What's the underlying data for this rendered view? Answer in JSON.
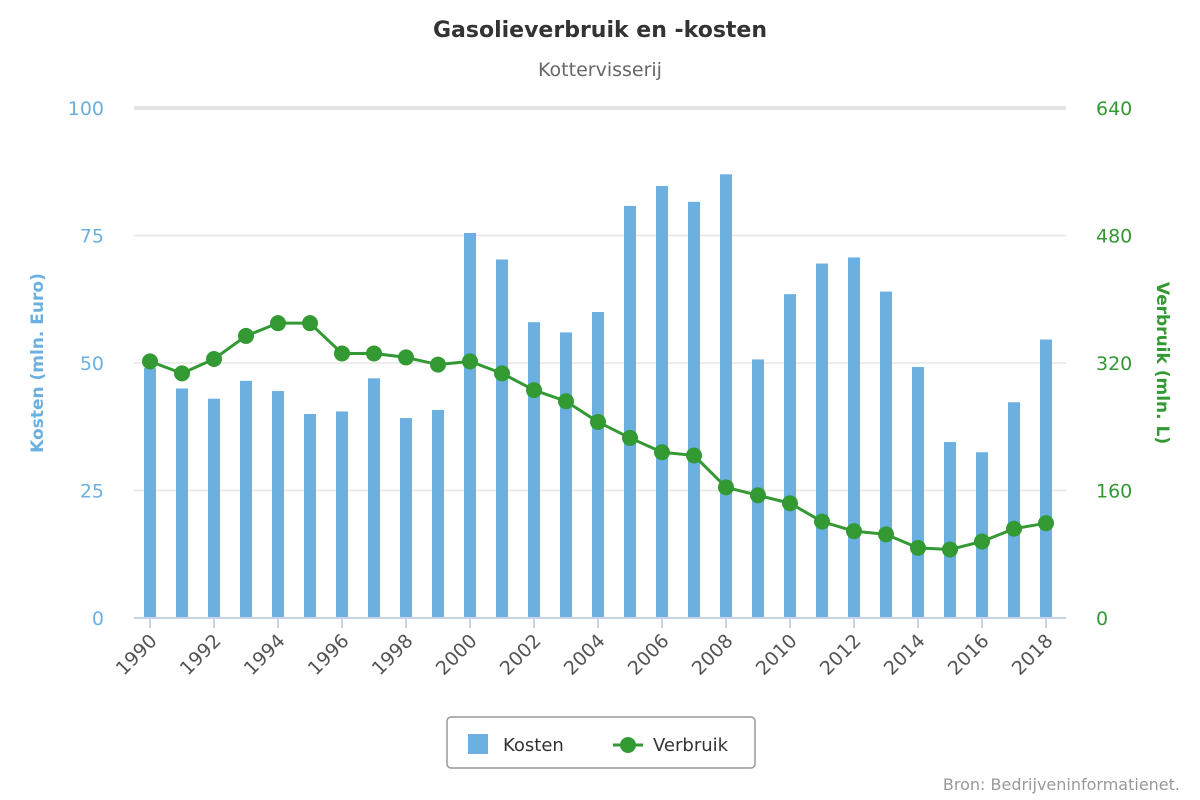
{
  "chart_data": {
    "type": "bar+line",
    "title": "Gasolieverbruik en -kosten",
    "subtitle": "Kottervisserij",
    "x": [
      1990,
      1991,
      1992,
      1993,
      1994,
      1995,
      1996,
      1997,
      1998,
      1999,
      2000,
      2001,
      2002,
      2003,
      2004,
      2005,
      2006,
      2007,
      2008,
      2009,
      2010,
      2011,
      2012,
      2013,
      2014,
      2015,
      2016,
      2017,
      2018
    ],
    "x_tick_labels": [
      "1990",
      "1992",
      "1994",
      "1996",
      "1998",
      "2000",
      "2002",
      "2004",
      "2006",
      "2008",
      "2010",
      "2012",
      "2014",
      "2016",
      "2018"
    ],
    "y_left": {
      "label": "Kosten (mln. Euro)",
      "range": [
        0,
        100
      ],
      "ticks": [
        "0",
        "25",
        "50",
        "75",
        "100"
      ]
    },
    "y_right": {
      "label": "Verbruik (mln. L)",
      "range": [
        0,
        640
      ],
      "ticks": [
        "0",
        "160",
        "320",
        "480",
        "640"
      ]
    },
    "series": [
      {
        "name": "Kosten",
        "type": "bar",
        "axis": "left",
        "color": "#6bb0e0",
        "values": [
          49,
          45,
          43,
          46.5,
          44.5,
          40,
          40.5,
          47,
          39.2,
          40.8,
          75.5,
          70.3,
          58,
          56,
          60,
          80.8,
          84.7,
          81.6,
          87,
          50.7,
          63.5,
          69.5,
          70.7,
          64,
          49.2,
          34.5,
          32.5,
          42.3,
          54.6
        ]
      },
      {
        "name": "Verbruik",
        "type": "line",
        "axis": "right",
        "color": "#339933",
        "values": [
          322,
          307,
          325,
          354,
          370,
          370,
          332,
          332,
          327,
          318,
          322,
          307,
          286,
          272,
          246,
          226,
          208,
          204,
          164,
          154,
          144,
          121,
          109,
          105,
          88,
          86,
          96,
          112,
          119
        ]
      }
    ],
    "grid": true,
    "legend_position": "bottom-center",
    "credit": "Bron: Bedrijveninformatienet."
  }
}
